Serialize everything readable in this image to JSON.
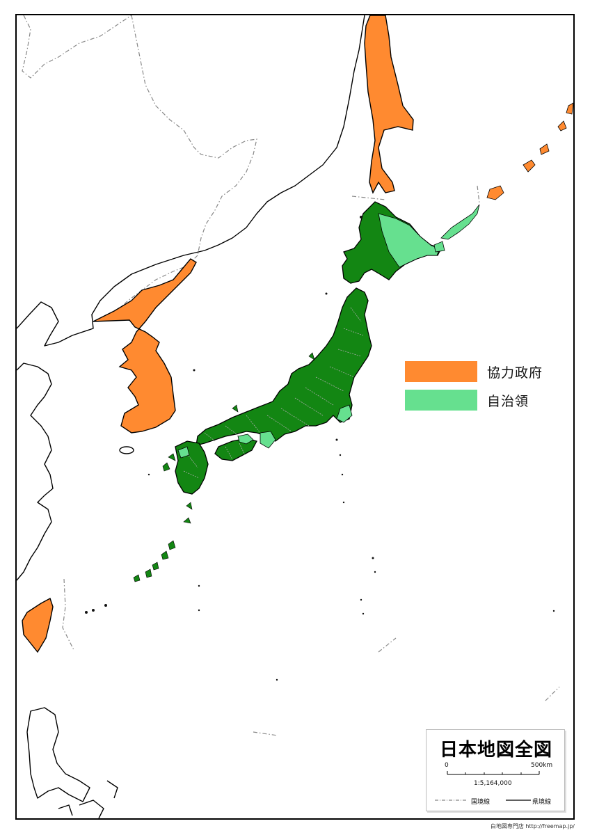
{
  "map": {
    "title": "日本地図全図",
    "colors": {
      "cooperative_government": "#ff8a30",
      "autonomous_territory": "#66e08f",
      "japan": "#138613",
      "outline": "#000000",
      "border": "#888888"
    },
    "legend": [
      {
        "label": "協力政府",
        "color": "#ff8a30"
      },
      {
        "label": "自治領",
        "color": "#66e08f"
      }
    ],
    "scale": {
      "start": "0",
      "end": "500km",
      "ratio": "1:5,164,000"
    },
    "line_legend": [
      {
        "label": "国境線"
      },
      {
        "label": "県境線"
      }
    ],
    "credit": "白地図専門店 http://freemap.jp/"
  }
}
